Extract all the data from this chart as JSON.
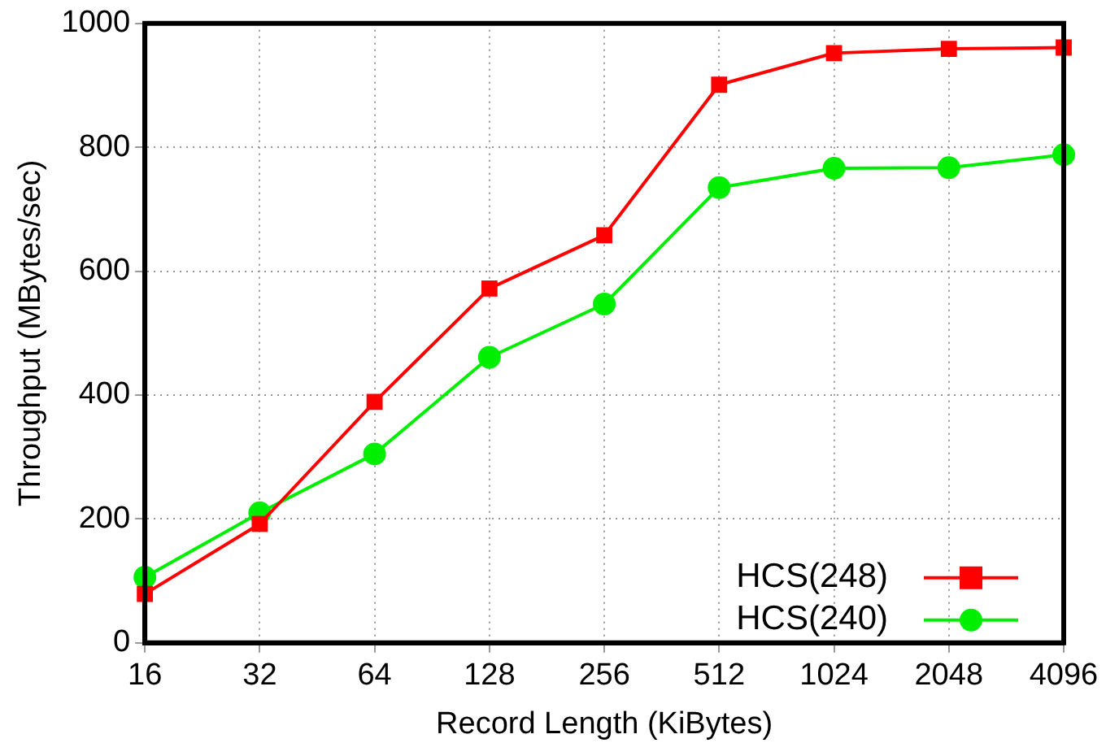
{
  "chart_data": {
    "type": "line",
    "xlabel": "Record Length (KiBytes)",
    "ylabel": "Throughput (MBytes/sec)",
    "categories": [
      "16",
      "32",
      "64",
      "128",
      "256",
      "512",
      "1024",
      "2048",
      "4096"
    ],
    "series": [
      {
        "name": "HCS(248)",
        "color": "#ff0000",
        "marker": "square",
        "values": [
          79,
          192,
          389,
          572,
          658,
          901,
          952,
          959,
          961
        ]
      },
      {
        "name": "HCS(240)",
        "color": "#00ee00",
        "marker": "circle",
        "values": [
          106,
          210,
          305,
          461,
          547,
          735,
          766,
          767,
          788
        ]
      }
    ],
    "ylim": [
      0,
      1000
    ],
    "yticks": [
      0,
      200,
      400,
      600,
      800,
      1000
    ],
    "grid": true,
    "legend": "bottom right",
    "line_style": "solid"
  }
}
